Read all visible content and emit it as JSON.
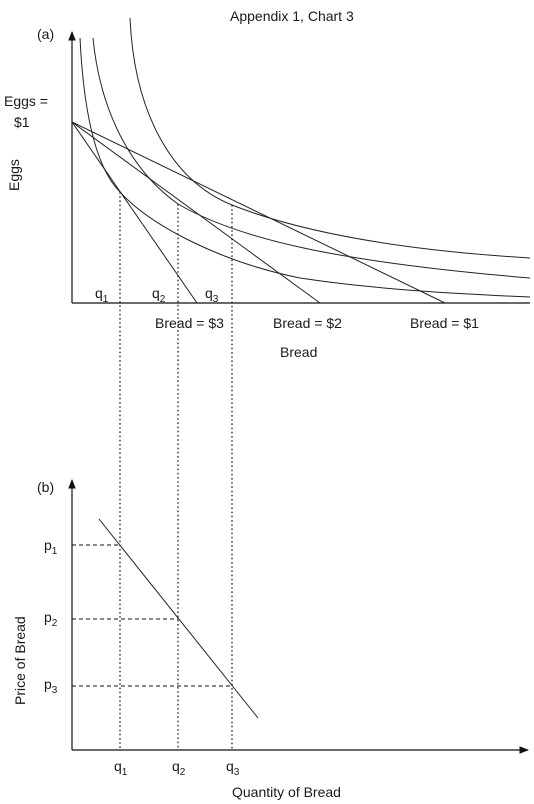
{
  "title": "Appendix 1, Chart 3",
  "panel_a": {
    "tag": "(a)",
    "y_axis_label": "Eggs",
    "eggs_price_line1": "Eggs =",
    "eggs_price_line2": "$1",
    "x_axis_label": "Bread",
    "quantity_labels": [
      {
        "base": "q",
        "sub": "1"
      },
      {
        "base": "q",
        "sub": "2"
      },
      {
        "base": "q",
        "sub": "3"
      }
    ],
    "budget_line_labels": [
      "Bread = $3",
      "Bread = $2",
      "Bread = $1"
    ]
  },
  "panel_b": {
    "tag": "(b)",
    "y_axis_label": "Price of Bread",
    "x_axis_label": "Quantity of Bread",
    "price_labels": [
      {
        "base": "p",
        "sub": "1"
      },
      {
        "base": "p",
        "sub": "2"
      },
      {
        "base": "p",
        "sub": "3"
      }
    ],
    "quantity_labels": [
      {
        "base": "q",
        "sub": "1"
      },
      {
        "base": "q",
        "sub": "2"
      },
      {
        "base": "q",
        "sub": "3"
      }
    ]
  }
}
